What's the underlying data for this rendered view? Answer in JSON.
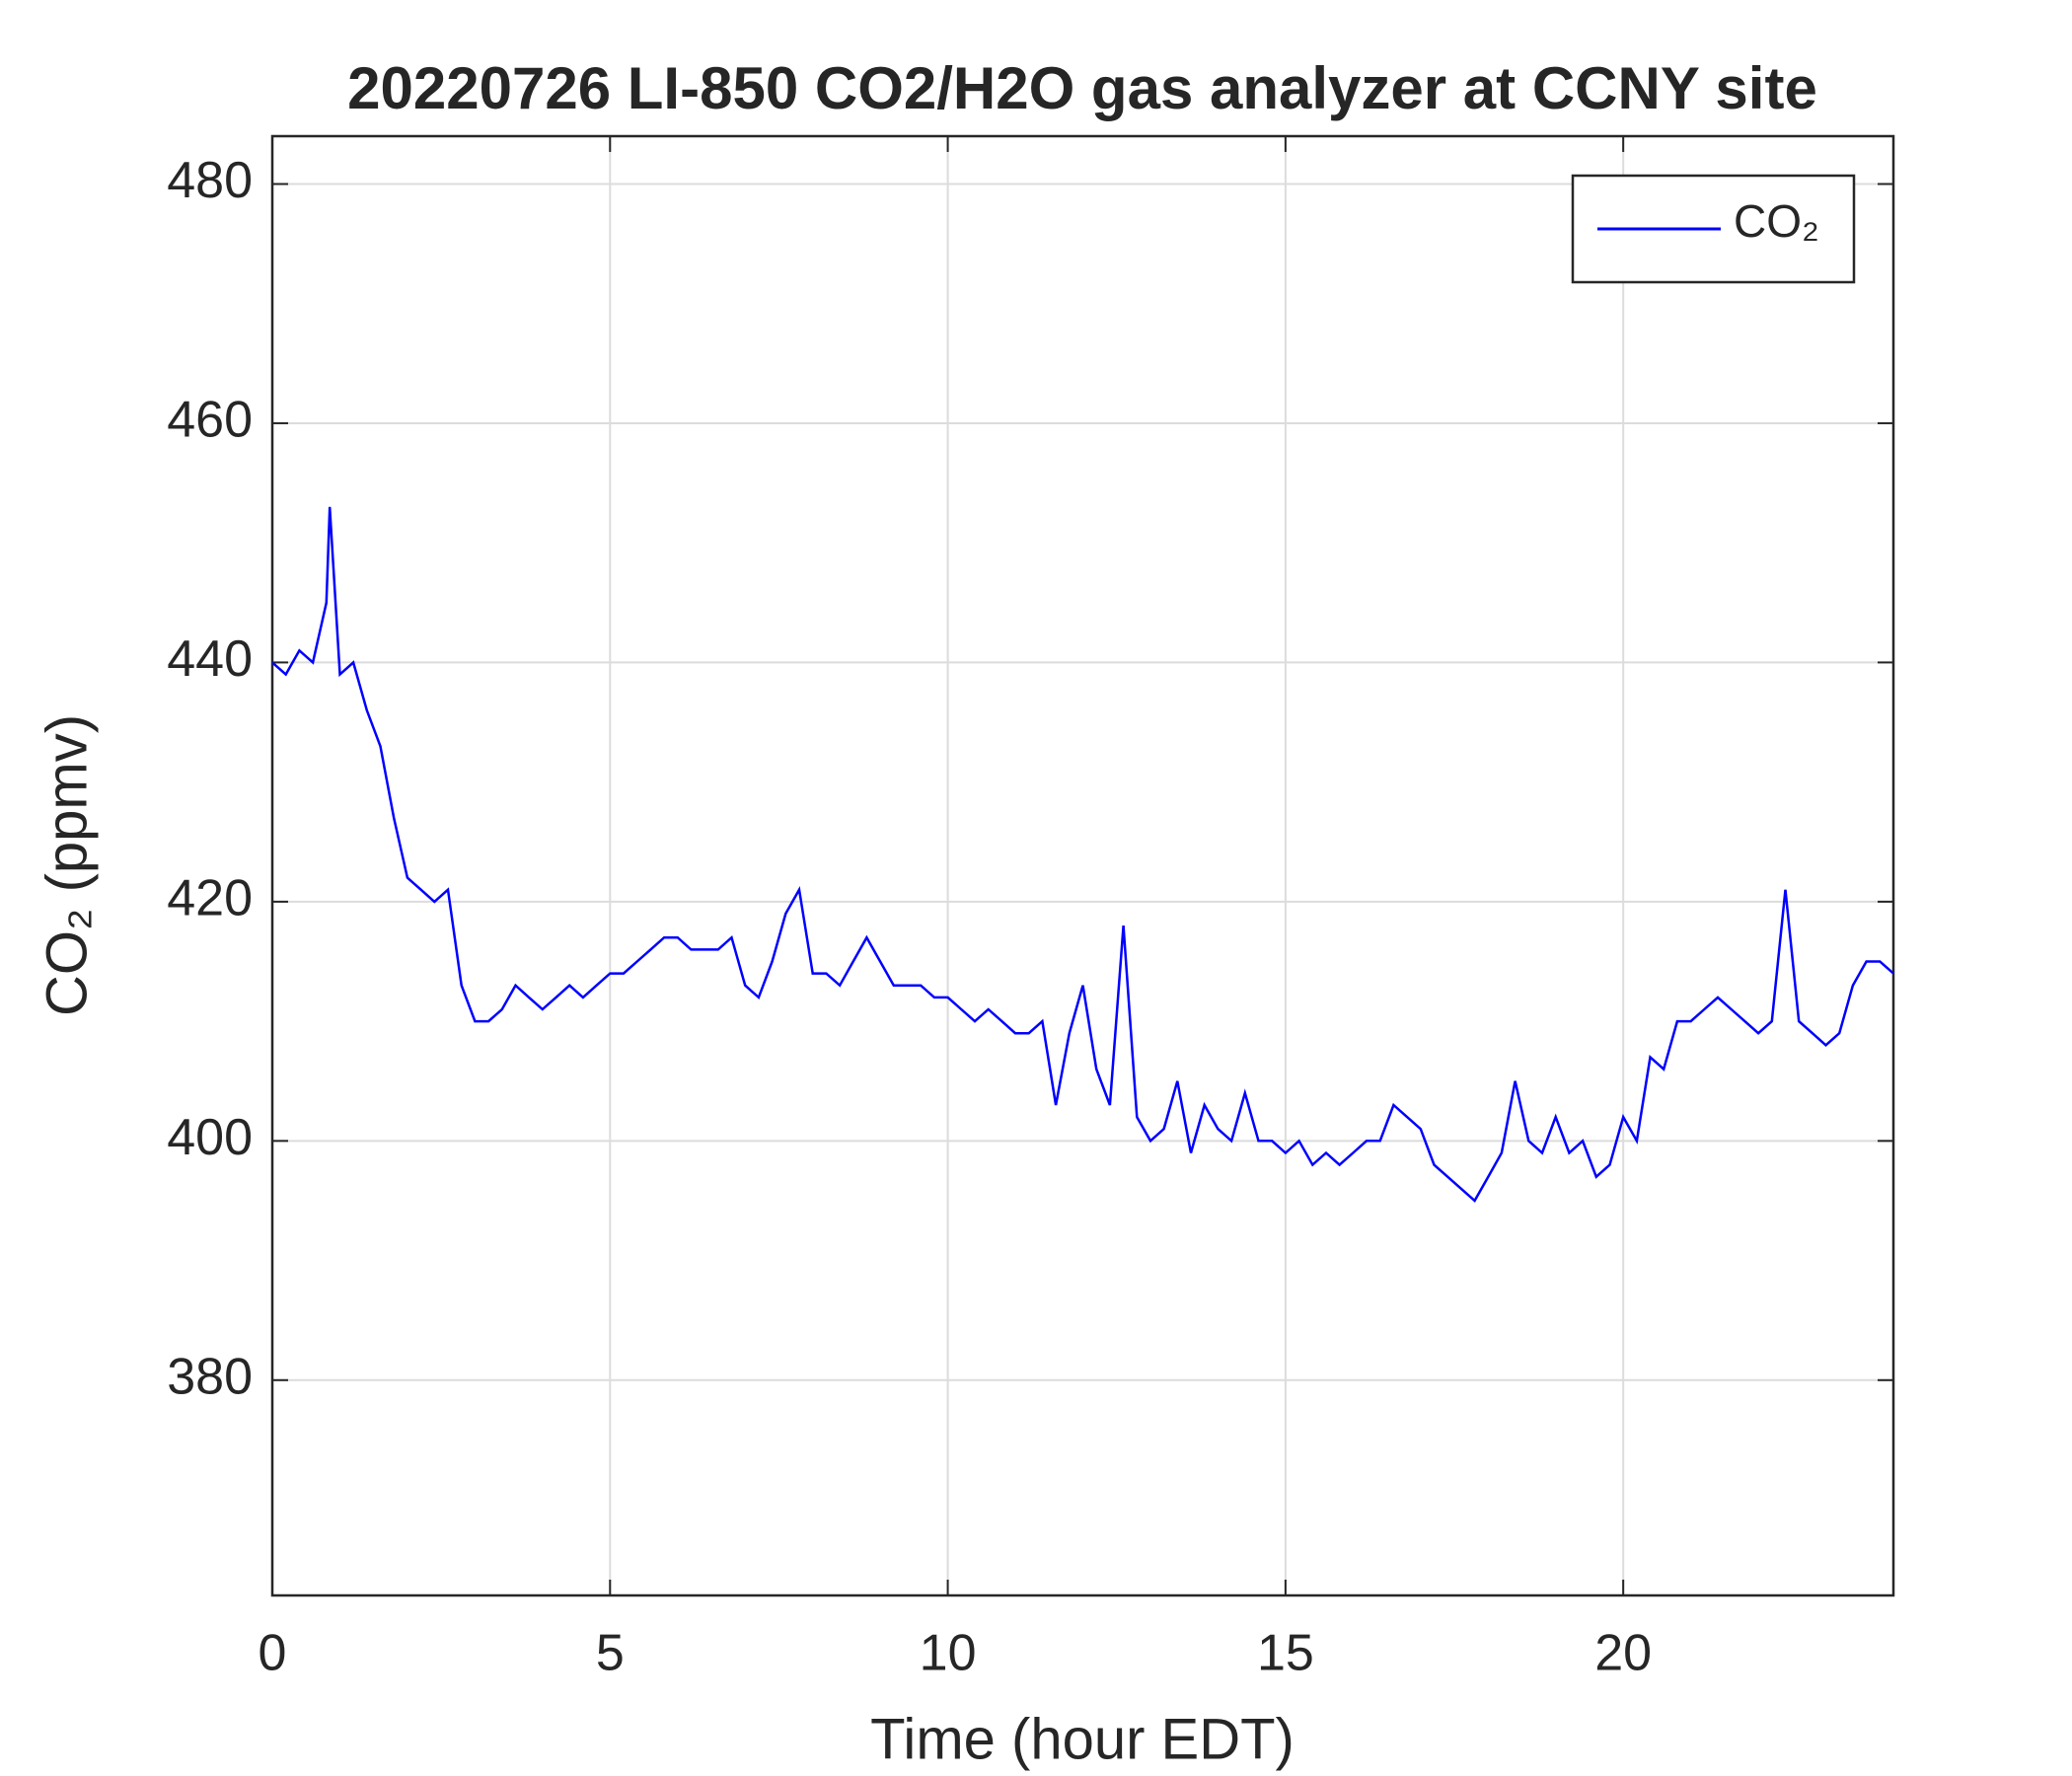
{
  "chart_data": {
    "type": "line",
    "title": "20220726 LI-850 CO2/H2O gas analyzer at CCNY site",
    "xlabel": "Time (hour EDT)",
    "ylabel": "CO₂ (ppmv)",
    "x": [
      0,
      0.2,
      0.4,
      0.6,
      0.8,
      0.85,
      1.0,
      1.2,
      1.4,
      1.6,
      1.8,
      2.0,
      2.2,
      2.4,
      2.6,
      2.8,
      3.0,
      3.2,
      3.4,
      3.6,
      3.8,
      4.0,
      4.2,
      4.4,
      4.6,
      4.8,
      5.0,
      5.2,
      5.4,
      5.6,
      5.8,
      6.0,
      6.2,
      6.4,
      6.6,
      6.8,
      7.0,
      7.2,
      7.4,
      7.6,
      7.8,
      8.0,
      8.2,
      8.4,
      8.6,
      8.8,
      9.0,
      9.2,
      9.4,
      9.6,
      9.8,
      10.0,
      10.2,
      10.4,
      10.6,
      10.8,
      11.0,
      11.2,
      11.4,
      11.6,
      11.8,
      12.0,
      12.2,
      12.4,
      12.6,
      12.8,
      13.0,
      13.2,
      13.4,
      13.6,
      13.8,
      14.0,
      14.2,
      14.4,
      14.6,
      14.8,
      15.0,
      15.2,
      15.4,
      15.6,
      15.8,
      16.0,
      16.2,
      16.4,
      16.6,
      16.8,
      17.0,
      17.2,
      17.4,
      17.6,
      17.8,
      18.0,
      18.2,
      18.4,
      18.6,
      18.8,
      19.0,
      19.2,
      19.4,
      19.6,
      19.8,
      20.0,
      20.2,
      20.4,
      20.6,
      20.8,
      21.0,
      21.2,
      21.4,
      21.6,
      21.8,
      22.0,
      22.2,
      22.4,
      22.6,
      22.8,
      23.0,
      23.2,
      23.4,
      23.6,
      23.8,
      24.0
    ],
    "series": [
      {
        "name": "CO₂",
        "color": "#0000ff",
        "values": [
          440,
          439,
          441,
          440,
          445,
          453,
          439,
          440,
          436,
          433,
          427,
          422,
          421,
          420,
          421,
          413,
          410,
          410,
          411,
          413,
          412,
          411,
          412,
          413,
          412,
          413,
          414,
          414,
          415,
          416,
          417,
          417,
          416,
          416,
          416,
          417,
          413,
          412,
          415,
          419,
          421,
          414,
          414,
          413,
          415,
          417,
          415,
          413,
          413,
          413,
          412,
          412,
          411,
          410,
          411,
          410,
          409,
          409,
          410,
          403,
          409,
          413,
          406,
          403,
          418,
          402,
          400,
          401,
          405,
          399,
          403,
          401,
          400,
          404,
          400,
          400,
          399,
          400,
          398,
          399,
          398,
          399,
          400,
          400,
          403,
          402,
          401,
          398,
          397,
          396,
          395,
          397,
          399,
          405,
          400,
          399,
          402,
          399,
          400,
          397,
          398,
          402,
          400,
          407,
          406,
          410,
          410,
          411,
          412,
          411,
          410,
          409,
          410,
          421,
          410,
          409,
          408,
          409,
          413,
          415,
          415,
          414
        ]
      }
    ],
    "xlim": [
      0,
      24
    ],
    "xticks": [
      0,
      5,
      10,
      15,
      20
    ],
    "ylim": [
      362,
      484
    ],
    "yticks": [
      380,
      400,
      420,
      440,
      460,
      480
    ],
    "grid": true,
    "legend": "northeast"
  }
}
